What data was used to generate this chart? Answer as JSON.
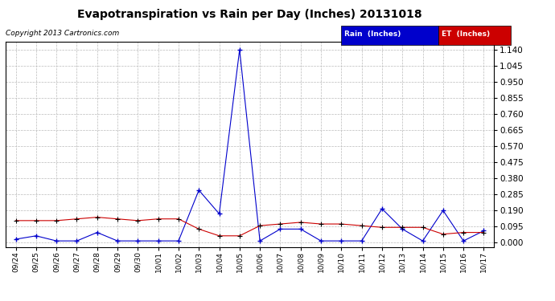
{
  "title": "Evapotranspiration vs Rain per Day (Inches) 20131018",
  "copyright": "Copyright 2013 Cartronics.com",
  "dates": [
    "09/24",
    "09/25",
    "09/26",
    "09/27",
    "09/28",
    "09/29",
    "09/30",
    "10/01",
    "10/02",
    "10/03",
    "10/04",
    "10/05",
    "10/06",
    "10/07",
    "10/08",
    "10/09",
    "10/10",
    "10/11",
    "10/12",
    "10/13",
    "10/14",
    "10/15",
    "10/16",
    "10/17"
  ],
  "rain": [
    0.02,
    0.04,
    0.01,
    0.01,
    0.06,
    0.01,
    0.01,
    0.01,
    0.01,
    0.31,
    0.17,
    1.14,
    0.01,
    0.08,
    0.08,
    0.01,
    0.01,
    0.01,
    0.2,
    0.08,
    0.01,
    0.19,
    0.01,
    0.07
  ],
  "et": [
    0.13,
    0.13,
    0.13,
    0.14,
    0.15,
    0.14,
    0.13,
    0.14,
    0.14,
    0.08,
    0.04,
    0.04,
    0.1,
    0.11,
    0.12,
    0.11,
    0.11,
    0.1,
    0.09,
    0.09,
    0.09,
    0.05,
    0.06,
    0.06
  ],
  "rain_color": "#0000cc",
  "et_color": "#cc0000",
  "bg_color": "#ffffff",
  "grid_color": "#bbbbbb",
  "yticks": [
    0.0,
    0.095,
    0.19,
    0.285,
    0.38,
    0.475,
    0.57,
    0.665,
    0.76,
    0.855,
    0.95,
    1.045,
    1.14
  ],
  "ymax": 1.185,
  "ymin": -0.025
}
